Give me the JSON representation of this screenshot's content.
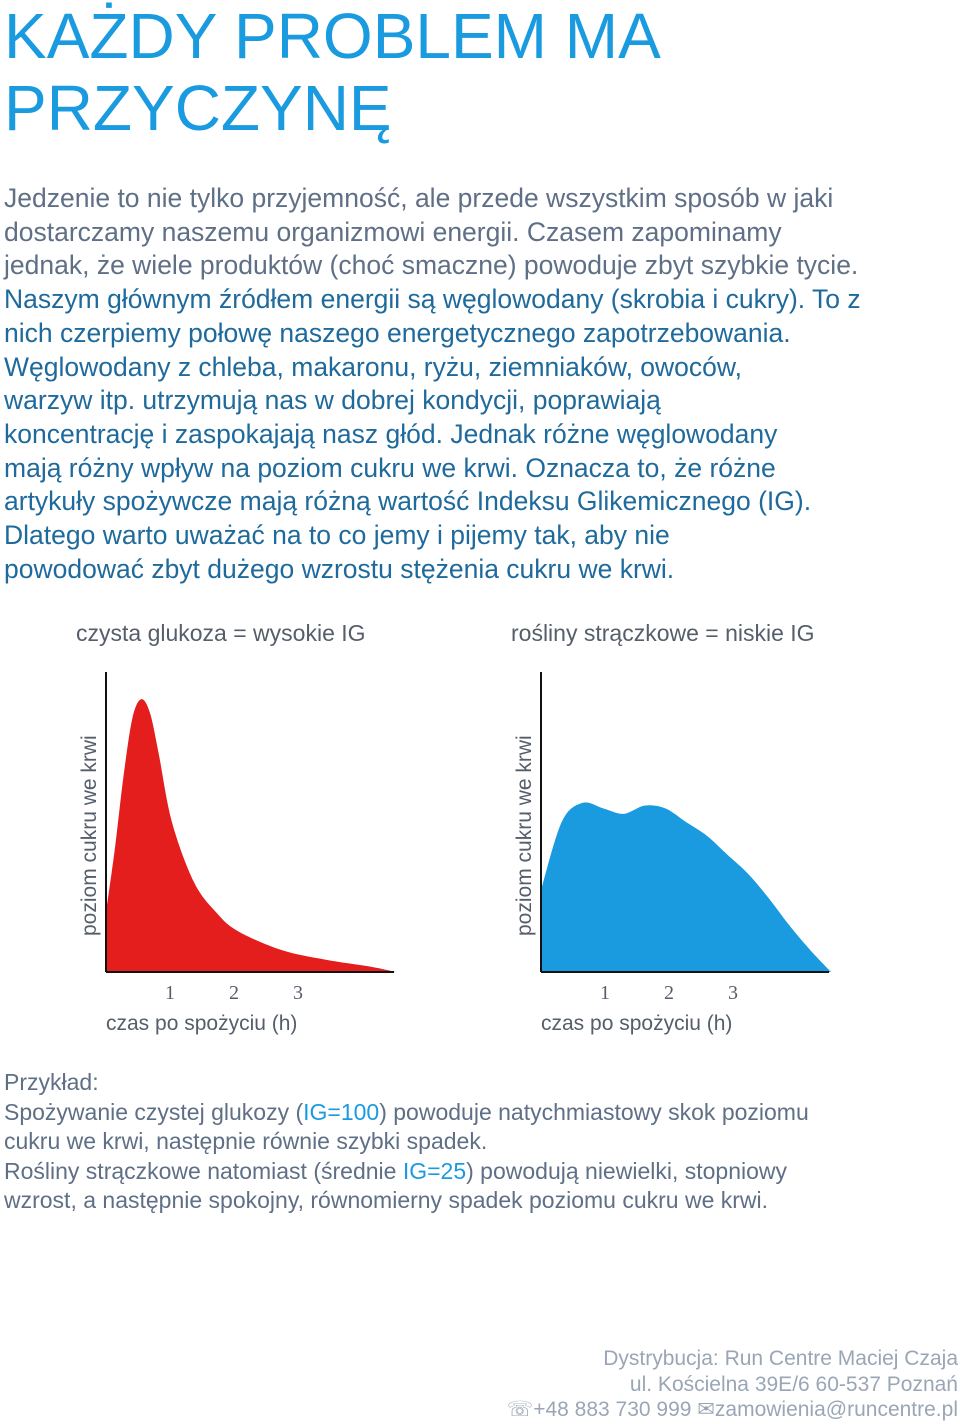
{
  "title": [
    "KAŻDY PROBLEM MA",
    "PRZYCZYNĘ"
  ],
  "intro": [
    {
      "text": "Jedzenie to nie tylko przyjemność, ale przede wszystkim sposób w jaki",
      "style": "grey"
    },
    {
      "text": "dostarczamy naszemu organizmowi energii. Czasem zapominamy",
      "style": "grey"
    },
    {
      "text": "jednak, że wiele produktów (choć smaczne) powoduje zbyt szybkie tycie.",
      "style": "grey"
    },
    {
      "text": "Naszym głównym źródłem energii są węglowodany (skrobia i cukry). To z",
      "style": "blue"
    },
    {
      "text": "nich czerpiemy połowę naszego energetycznego zapotrzebowania.",
      "style": "blue"
    },
    {
      "text": "Węglowodany z chleba, makaronu, ryżu, ziemniaków, owoców,",
      "style": "blue"
    },
    {
      "text": "warzyw itp. utrzymują nas w dobrej kondycji, poprawiają",
      "style": "blue"
    },
    {
      "text": "koncentrację i zaspokajają nasz głód. Jednak różne węglowodany",
      "style": "blue"
    },
    {
      "text": "mają różny wpływ na poziom cukru we krwi. Oznacza to, że różne",
      "style": "blue"
    },
    {
      "text": "artykuły spożywcze mają różną wartość Indeksu Glikemicznego (IG).",
      "style": "blue"
    },
    {
      "text": "Dlatego warto uważać na to co jemy i pijemy tak, aby nie",
      "style": "blue"
    },
    {
      "text": "powodować zbyt dużego wzrostu stężenia cukru we krwi.",
      "style": "blue"
    }
  ],
  "chart_data": [
    {
      "type": "area",
      "title": "czysta glukoza = wysokie IG",
      "ylabel": "poziom cukru we krwi",
      "xlabel": "czas po spożyciu (h)",
      "x_ticks": [
        "1",
        "2",
        "3"
      ],
      "color": "#e41d1d",
      "x": [
        0.0,
        0.1,
        0.2,
        0.3,
        0.4,
        0.5,
        0.6,
        0.75,
        1.0,
        1.25,
        1.5,
        2.0,
        2.5,
        3.0,
        3.3
      ],
      "y": [
        0.22,
        0.45,
        0.72,
        0.93,
        1.0,
        0.95,
        0.8,
        0.55,
        0.33,
        0.22,
        0.15,
        0.08,
        0.045,
        0.02,
        0.0
      ],
      "xlim": [
        0,
        3.3
      ],
      "ylim": [
        0,
        1.1
      ]
    },
    {
      "type": "area",
      "title": "rośliny strączkowe = niskie IG",
      "ylabel": "poziom cukru we krwi",
      "xlabel": "czas po spożyciu (h)",
      "x_ticks": [
        "1",
        "2",
        "3"
      ],
      "color": "#1a9be0",
      "x": [
        0.0,
        0.25,
        0.5,
        0.75,
        1.0,
        1.25,
        1.5,
        1.75,
        2.0,
        2.25,
        2.5,
        2.75,
        3.0,
        3.25,
        3.5
      ],
      "y": [
        0.3,
        0.55,
        0.62,
        0.6,
        0.58,
        0.61,
        0.6,
        0.55,
        0.5,
        0.43,
        0.36,
        0.27,
        0.17,
        0.08,
        0.0
      ],
      "xlim": [
        0,
        3.5
      ],
      "ylim": [
        0,
        1.1
      ]
    }
  ],
  "example": {
    "heading": "Przykład:",
    "line1_a": "Spożywanie czystej glukozy (",
    "line1_hl": "IG=100",
    "line1_b": ") powoduje natychmiastowy skok poziomu",
    "line2": "cukru we krwi, następnie równie szybki spadek.",
    "line3_a": "Rośliny strączkowe natomiast (średnie ",
    "line3_hl": "IG=25",
    "line3_b": ") powodują niewielki, stopniowy",
    "line4": "wzrost, a następnie spokojny, równomierny spadek poziomu cukru we krwi."
  },
  "footer": {
    "distribution": "Dystrybucja: Run Centre Maciej Czaja",
    "address": "ul. Kościelna 39E/6 60-537 Poznań",
    "phone": "+48 883 730 999",
    "email": "zamowienia@runcentre.pl",
    "phone_icon": "phone-icon",
    "email_icon": "envelope-icon"
  }
}
